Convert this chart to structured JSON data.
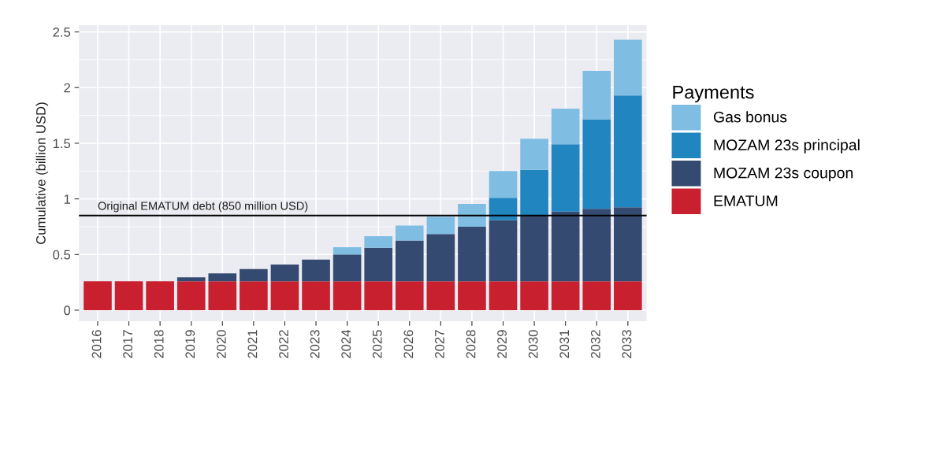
{
  "chart_data": {
    "type": "bar",
    "stacked": true,
    "ylabel": "Cumulative (billion USD)",
    "legend_title": "Payments",
    "categories": [
      "2016",
      "2017",
      "2018",
      "2019",
      "2020",
      "2021",
      "2022",
      "2023",
      "2024",
      "2025",
      "2026",
      "2027",
      "2028",
      "2029",
      "2030",
      "2031",
      "2032",
      "2033"
    ],
    "series": [
      {
        "name": "EMATUM",
        "color": "#c8202f",
        "values": [
          0.26,
          0.26,
          0.26,
          0.26,
          0.26,
          0.26,
          0.26,
          0.26,
          0.26,
          0.26,
          0.26,
          0.26,
          0.26,
          0.26,
          0.26,
          0.26,
          0.26,
          0.26
        ]
      },
      {
        "name": "MOZAM 23s coupon",
        "color": "#344a70",
        "values": [
          null,
          null,
          null,
          0.035,
          0.07,
          0.11,
          0.15,
          0.195,
          0.24,
          0.3,
          0.365,
          0.425,
          0.49,
          0.55,
          0.59,
          0.625,
          0.65,
          0.665
        ]
      },
      {
        "name": "MOZAM 23s principal",
        "color": "#2185bf",
        "values": [
          null,
          null,
          null,
          null,
          null,
          null,
          null,
          null,
          null,
          null,
          null,
          null,
          null,
          0.2,
          0.41,
          0.605,
          0.805,
          1.005
        ]
      },
      {
        "name": "Gas bonus",
        "color": "#7fbde3",
        "values": [
          null,
          null,
          null,
          null,
          null,
          null,
          null,
          null,
          0.065,
          0.105,
          0.135,
          0.155,
          0.205,
          0.24,
          0.28,
          0.32,
          0.435,
          0.5
        ]
      }
    ],
    "ylim": [
      -0.1,
      2.56
    ],
    "yticks": [
      0,
      0.5,
      1,
      1.5,
      2,
      2.5
    ],
    "ref_lines": [
      {
        "axis": "y",
        "value": 0.85,
        "label": "Original EMATUM debt (850 million USD)",
        "color": "#000000",
        "line_style": "solid"
      }
    ],
    "grid": true,
    "legend": "right"
  }
}
